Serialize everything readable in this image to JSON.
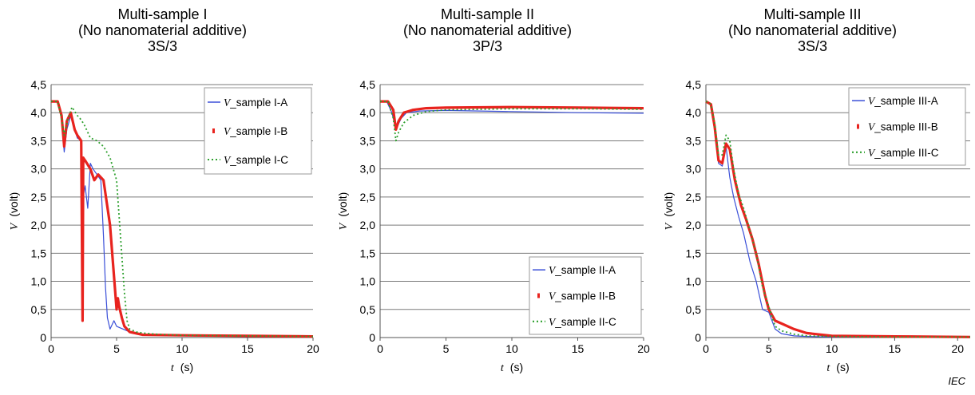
{
  "footer": {
    "logo_text": "IEC"
  },
  "chart_data": [
    {
      "type": "line",
      "title_lines": [
        "Multi-sample I",
        "(No nanomaterial additive)",
        "3S/3"
      ],
      "xlabel_var": "t",
      "xlabel_unit": "(s)",
      "ylabel_var": "V",
      "ylabel_unit": "(volt)",
      "xlim": [
        0,
        20
      ],
      "ylim": [
        0,
        4.5
      ],
      "xticks": [
        "0",
        "5",
        "10",
        "15",
        "20"
      ],
      "yticks": [
        "0",
        "0,5",
        "1,0",
        "1,5",
        "2,0",
        "2,5",
        "3,0",
        "3,5",
        "4,0",
        "4,5"
      ],
      "grid": "horizontal",
      "legend_position": "top-right",
      "series": [
        {
          "name_var": "V",
          "name_rest": "_sample I-A",
          "color": "#3a4fd8",
          "style": "solid",
          "x": [
            0,
            0.5,
            0.8,
            1.0,
            1.2,
            1.5,
            2.0,
            2.3,
            2.4,
            2.45,
            2.6,
            2.8,
            3.0,
            3.2,
            3.5,
            3.8,
            4.0,
            4.15,
            4.3,
            4.5,
            4.8,
            5.0,
            5.5,
            6.0,
            7.0,
            10.0,
            15.0,
            20.0
          ],
          "y": [
            4.2,
            4.2,
            3.9,
            3.3,
            3.7,
            3.95,
            3.55,
            3.5,
            0.3,
            2.5,
            2.7,
            2.3,
            3.1,
            3.0,
            2.9,
            2.8,
            1.8,
            0.9,
            0.35,
            0.15,
            0.3,
            0.2,
            0.15,
            0.1,
            0.05,
            0.03,
            0.02,
            0.02
          ]
        },
        {
          "name_var": "V",
          "name_rest": "_sample I-B",
          "color": "#e8231e",
          "style": "thick",
          "x": [
            0,
            0.5,
            0.8,
            1.0,
            1.2,
            1.5,
            1.8,
            2.0,
            2.3,
            2.4,
            2.45,
            2.6,
            3.0,
            3.3,
            3.6,
            4.0,
            4.5,
            4.8,
            5.0,
            5.1,
            5.2,
            5.4,
            5.6,
            6.0,
            7.0,
            10.0,
            15.0,
            20.0
          ],
          "y": [
            4.2,
            4.2,
            3.95,
            3.4,
            3.85,
            4.0,
            3.7,
            3.6,
            3.5,
            0.3,
            3.2,
            3.15,
            3.0,
            2.8,
            2.9,
            2.8,
            2.0,
            1.1,
            0.5,
            0.7,
            0.55,
            0.35,
            0.2,
            0.1,
            0.05,
            0.04,
            0.03,
            0.02
          ]
        },
        {
          "name_var": "V",
          "name_rest": "_sample I-C",
          "color": "#2ea02e",
          "style": "dotted",
          "x": [
            0,
            0.5,
            0.8,
            1.0,
            1.3,
            1.6,
            2.0,
            2.2,
            2.5,
            3.0,
            3.5,
            4.0,
            4.5,
            5.0,
            5.3,
            5.6,
            5.8,
            6.0,
            6.5,
            7.0,
            8.0,
            10.0,
            15.0,
            20.0
          ],
          "y": [
            4.2,
            4.2,
            3.9,
            3.6,
            3.9,
            4.1,
            3.95,
            3.9,
            3.8,
            3.55,
            3.5,
            3.4,
            3.2,
            2.8,
            1.8,
            0.8,
            0.3,
            0.15,
            0.1,
            0.08,
            0.06,
            0.04,
            0.03,
            0.02
          ]
        }
      ]
    },
    {
      "type": "line",
      "title_lines": [
        "Multi-sample II",
        "(No nanomaterial additive)",
        "3P/3"
      ],
      "xlabel_var": "t",
      "xlabel_unit": "(s)",
      "ylabel_var": "V",
      "ylabel_unit": "(volt)",
      "xlim": [
        0,
        20
      ],
      "ylim": [
        0,
        4.5
      ],
      "xticks": [
        "0",
        "5",
        "10",
        "15",
        "20"
      ],
      "yticks": [
        "0",
        "0,5",
        "1,0",
        "1,5",
        "2,0",
        "2,5",
        "3,0",
        "3,5",
        "4,0",
        "4,5"
      ],
      "grid": "horizontal",
      "legend_position": "bottom-right",
      "series": [
        {
          "name_var": "V",
          "name_rest": "_sample II-A",
          "color": "#3a4fd8",
          "style": "solid",
          "x": [
            0,
            0.5,
            0.9,
            1.1,
            1.3,
            1.6,
            2.0,
            3.0,
            5.0,
            10.0,
            15.0,
            20.0
          ],
          "y": [
            4.2,
            4.2,
            4.0,
            3.8,
            3.75,
            3.9,
            4.0,
            4.03,
            4.04,
            4.02,
            4.0,
            3.99
          ]
        },
        {
          "name_var": "V",
          "name_rest": "_sample II-B",
          "color": "#e8231e",
          "style": "thick",
          "x": [
            0,
            0.6,
            1.0,
            1.2,
            1.4,
            1.8,
            2.5,
            3.5,
            5.0,
            10.0,
            15.0,
            20.0
          ],
          "y": [
            4.2,
            4.2,
            4.05,
            3.7,
            3.85,
            4.0,
            4.05,
            4.08,
            4.09,
            4.1,
            4.09,
            4.08
          ]
        },
        {
          "name_var": "V",
          "name_rest": "_sample II-C",
          "color": "#2ea02e",
          "style": "dotted",
          "x": [
            0,
            0.6,
            1.0,
            1.2,
            1.4,
            1.8,
            2.5,
            3.5,
            5.0,
            10.0,
            15.0,
            20.0
          ],
          "y": [
            4.2,
            4.2,
            3.9,
            3.5,
            3.65,
            3.82,
            3.95,
            4.02,
            4.05,
            4.07,
            4.07,
            4.06
          ]
        }
      ]
    },
    {
      "type": "line",
      "title_lines": [
        "Multi-sample III",
        "(No nanomaterial additive)",
        "3S/3"
      ],
      "xlabel_var": "t",
      "xlabel_unit": "(s)",
      "ylabel_var": "V",
      "ylabel_unit": "(volt)",
      "xlim": [
        0,
        21
      ],
      "ylim": [
        0,
        4.5
      ],
      "xticks": [
        "0",
        "5",
        "10",
        "15",
        "20"
      ],
      "yticks": [
        "0",
        "0,5",
        "1,0",
        "1,5",
        "2,0",
        "2,5",
        "3,0",
        "3,5",
        "4,0",
        "4,5"
      ],
      "grid": "horizontal",
      "legend_position": "top-right",
      "series": [
        {
          "name_var": "V",
          "name_rest": "_sample III-A",
          "color": "#3a4fd8",
          "style": "solid",
          "x": [
            0,
            0.4,
            0.7,
            1.0,
            1.3,
            1.6,
            1.9,
            2.2,
            2.6,
            3.0,
            3.5,
            4.0,
            4.5,
            5.0,
            5.5,
            6.0,
            7.0,
            8.0,
            10.0,
            15.0,
            21.0
          ],
          "y": [
            4.2,
            4.15,
            3.7,
            3.1,
            3.05,
            3.4,
            2.85,
            2.5,
            2.15,
            1.85,
            1.35,
            1.0,
            0.5,
            0.45,
            0.15,
            0.07,
            0.03,
            0.02,
            0.01,
            0.01,
            0.01
          ]
        },
        {
          "name_var": "V",
          "name_rest": "_sample III-B",
          "color": "#e8231e",
          "style": "thick",
          "x": [
            0,
            0.4,
            0.7,
            1.0,
            1.3,
            1.6,
            1.9,
            2.3,
            2.8,
            3.2,
            3.7,
            4.2,
            4.7,
            5.0,
            5.5,
            6.0,
            7.0,
            8.0,
            10.0,
            15.0,
            21.0
          ],
          "y": [
            4.2,
            4.15,
            3.75,
            3.15,
            3.1,
            3.45,
            3.35,
            2.8,
            2.35,
            2.1,
            1.75,
            1.3,
            0.75,
            0.5,
            0.3,
            0.25,
            0.15,
            0.08,
            0.03,
            0.02,
            0.01
          ]
        },
        {
          "name_var": "V",
          "name_rest": "_sample III-C",
          "color": "#2ea02e",
          "style": "dotted",
          "x": [
            0,
            0.4,
            0.7,
            1.0,
            1.3,
            1.6,
            1.9,
            2.2,
            2.6,
            3.0,
            3.5,
            4.0,
            4.5,
            5.0,
            5.5,
            6.0,
            7.0,
            8.0,
            10.0,
            15.0,
            21.0
          ],
          "y": [
            4.2,
            4.15,
            3.8,
            3.25,
            3.25,
            3.6,
            3.5,
            3.0,
            2.55,
            2.3,
            1.9,
            1.5,
            0.9,
            0.55,
            0.2,
            0.12,
            0.06,
            0.03,
            0.02,
            0.01,
            0.01
          ]
        }
      ]
    }
  ]
}
